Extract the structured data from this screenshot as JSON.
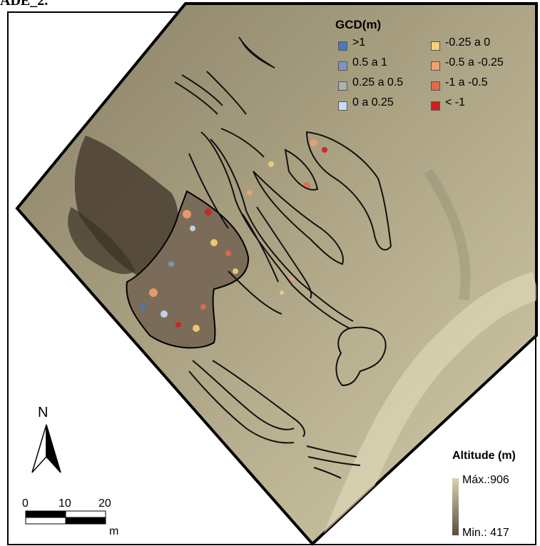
{
  "header": {
    "partial_title": "ADE_2."
  },
  "gcd_legend": {
    "title": "GCD(m)",
    "items": [
      {
        "label": ">1",
        "color": "#4a78b8"
      },
      {
        "label": "0.5 a 1",
        "color": "#7c96c0"
      },
      {
        "label": "0.25 a 0.5",
        "color": "#a8b4b0"
      },
      {
        "label": "0 a 0.25",
        "color": "#c6dcf6"
      },
      {
        "label": "-0.25 a 0",
        "color": "#f6d07a"
      },
      {
        "label": "-0.5 a -0.25",
        "color": "#f0a070"
      },
      {
        "label": "-1 a -0.5",
        "color": "#e06a4a"
      },
      {
        "label": "< -1",
        "color": "#d02020"
      }
    ]
  },
  "altitude_legend": {
    "title": "Altitude (m)",
    "max_label": "Máx.:906",
    "min_label": "Min.: 417",
    "max_color": "#d8d2ae",
    "min_color": "#5a4d40"
  },
  "north_arrow": {
    "label": "N"
  },
  "scale_bar": {
    "ticks": [
      "0",
      "10",
      "20"
    ],
    "unit": "m"
  }
}
